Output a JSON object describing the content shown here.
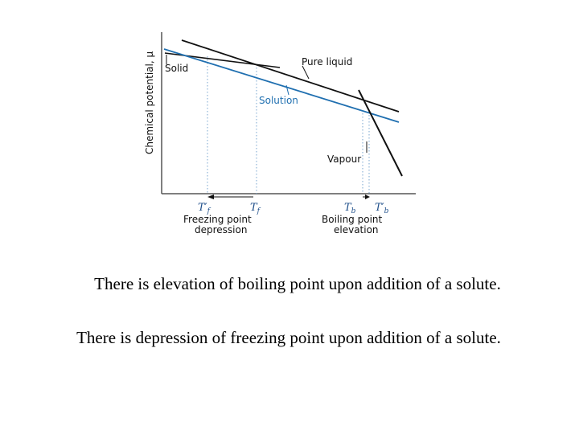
{
  "diagram": {
    "y_axis_label": "Chemical potential, μ",
    "labels": {
      "solid": "Solid",
      "pure_liquid": "Pure liquid",
      "solution": "Solution",
      "vapour": "Vapour"
    },
    "ticks": {
      "tf_prime": "T",
      "tf_prime_sub": "f",
      "tf_prime_mark": "′",
      "tf": "T",
      "tf_sub": "f",
      "tb": "T",
      "tb_sub": "b",
      "tb_prime": "T",
      "tb_prime_sub": "b",
      "tb_prime_mark": "′"
    },
    "annotations": {
      "freezing_line1": "Freezing point",
      "freezing_line2": "depression",
      "boiling_line1": "Boiling point",
      "boiling_line2": "elevation"
    },
    "colors": {
      "solution_line": "#1f6fb0",
      "guide_line": "#7aa6cf",
      "line": "#111111"
    }
  },
  "captions": [
    "There is elevation of boiling point upon addition of a solute.",
    "There is depression of freezing point upon addition of a solute."
  ]
}
